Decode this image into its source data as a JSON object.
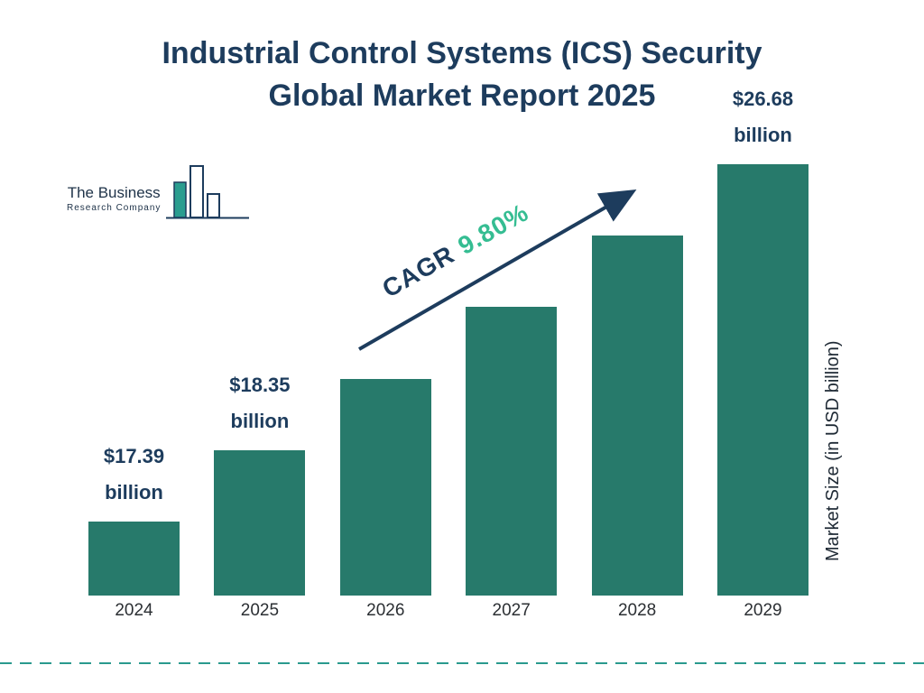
{
  "title": {
    "line1": "Industrial Control Systems (ICS) Security",
    "line2": "Global Market Report 2025"
  },
  "logo": {
    "line1": "The Business",
    "line2": "Research Company"
  },
  "colors": {
    "bar": "#277a6b",
    "navy": "#1d3c5d",
    "green": "#35bd92",
    "divider": "#2a9a8e"
  },
  "chart_data": {
    "type": "bar",
    "title": "Industrial Control Systems (ICS) Security Global Market Report 2025",
    "categories": [
      "2024",
      "2025",
      "2026",
      "2027",
      "2028",
      "2029"
    ],
    "series": [
      {
        "name": "Market Size (in USD billion)",
        "values": [
          17.39,
          18.35,
          20.15,
          22.12,
          24.29,
          26.68
        ]
      }
    ],
    "value_labels": [
      {
        "category": "2024",
        "line1": "$17.39",
        "line2": "billion"
      },
      {
        "category": "2025",
        "line1": "$18.35",
        "line2": "billion"
      },
      {
        "category": "2029",
        "line1": "$26.68",
        "line2": "billion"
      }
    ],
    "annotations": {
      "cagr_label": "CAGR",
      "cagr_value": "9.80%"
    },
    "xlabel": "",
    "ylabel": "Market Size (in USD billion)",
    "ylim": [
      15.5,
      27.5
    ],
    "grid": false,
    "legend": false
  }
}
